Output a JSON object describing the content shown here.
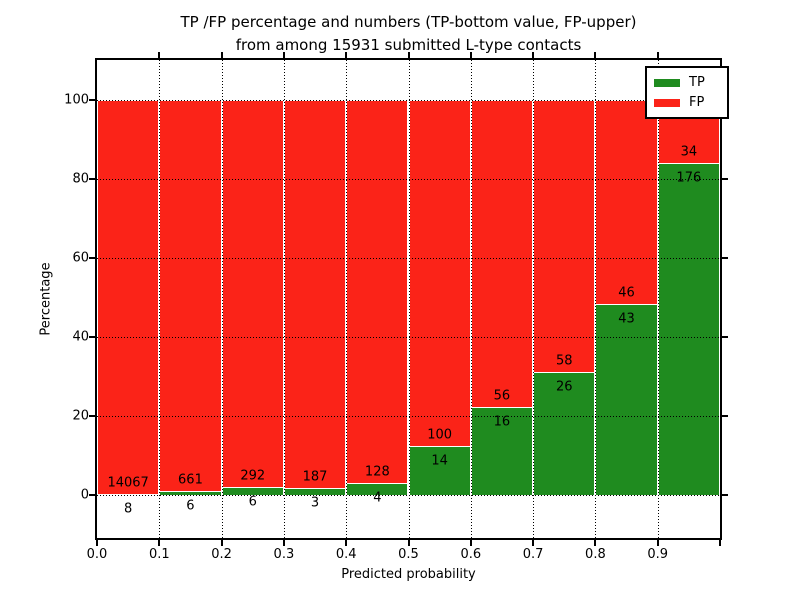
{
  "figure": {
    "title_line1": "TP /FP percentage and numbers (TP-bottom value, FP-upper)",
    "title_line2": "from among 15931 submitted L-type contacts"
  },
  "chart_data": {
    "type": "bar",
    "stacked": true,
    "title": "TP /FP percentage and numbers (TP-bottom value, FP-upper) from among 15931 submitted L-type contacts",
    "xlabel": "Predicted probability",
    "ylabel": "Percentage",
    "total_contacts": 15931,
    "x_bin_edges": [
      0.0,
      0.1,
      0.2,
      0.3,
      0.4,
      0.5,
      0.6,
      0.7,
      0.8,
      0.9,
      1.0
    ],
    "categories": [
      "0.0-0.1",
      "0.1-0.2",
      "0.2-0.3",
      "0.3-0.4",
      "0.4-0.5",
      "0.5-0.6",
      "0.6-0.7",
      "0.7-0.8",
      "0.8-0.9",
      "0.9-1.0"
    ],
    "series": [
      {
        "name": "TP",
        "color": "#1f8b1f",
        "counts": [
          8,
          6,
          6,
          3,
          4,
          14,
          16,
          26,
          43,
          176
        ]
      },
      {
        "name": "FP",
        "color": "#fb2318",
        "counts": [
          14067,
          661,
          292,
          187,
          128,
          100,
          56,
          58,
          46,
          34
        ]
      }
    ],
    "tp_percent_of_bin": [
      0.06,
      0.9,
      2.01,
      1.58,
      3.03,
      12.28,
      22.22,
      30.95,
      48.31,
      83.81
    ],
    "bars_normalized_to_percent": 100,
    "xtick_labels": [
      "0.0",
      "0.1",
      "0.2",
      "0.3",
      "0.4",
      "0.5",
      "0.6",
      "0.7",
      "0.8",
      "0.9"
    ],
    "ytick_values": [
      0,
      20,
      40,
      60,
      80,
      100
    ],
    "xlim": [
      0,
      1
    ],
    "ylim": [
      -11,
      110
    ],
    "grid": true,
    "grid_style": "dotted",
    "legend": {
      "position": "upper right",
      "items": [
        {
          "label": "TP",
          "color": "#1f8b1f"
        },
        {
          "label": "FP",
          "color": "#fb2318"
        }
      ]
    }
  }
}
